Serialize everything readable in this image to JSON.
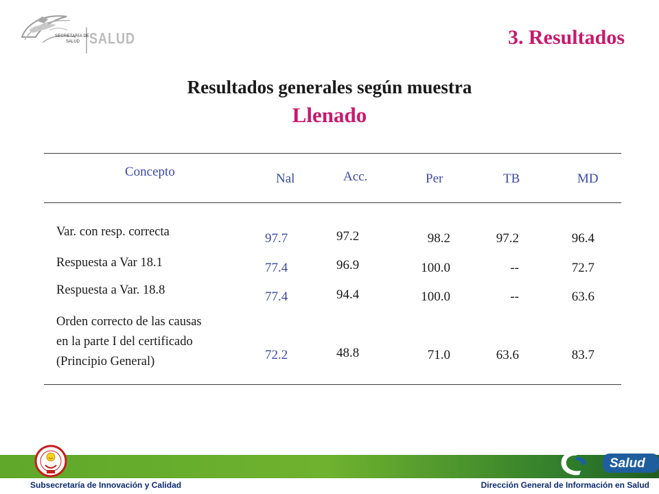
{
  "logo": {
    "line1": "SECRETARÍA DE",
    "line2": "SALUD",
    "brand": "SALUD"
  },
  "section_title": "3. Resultados",
  "main_title": "Resultados generales según muestra",
  "sub_title": "Llenado",
  "table": {
    "headers": {
      "concepto": "Concepto",
      "nal": "Nal",
      "acc": "Acc.",
      "per": "Per",
      "tb": "TB",
      "md": "MD"
    },
    "rows": [
      {
        "concepto": "Var. con resp. correcta",
        "nal": "97.7",
        "acc": "97.2",
        "per": "98.2",
        "tb": "97.2",
        "md": "96.4"
      },
      {
        "concepto": "Respuesta a Var 18.1",
        "nal": "77.4",
        "acc": "96.9",
        "per": "100.0",
        "tb": "--",
        "md": "72.7"
      },
      {
        "concepto": "Respuesta a Var. 18.8",
        "nal": "77.4",
        "acc": "94.4",
        "per": "100.0",
        "tb": "--",
        "md": "63.6"
      },
      {
        "concepto_lines": [
          "Orden correcto de las causas",
          "en la parte I del certificado",
          "(Principio General)"
        ],
        "nal": "72.2",
        "acc": "48.8",
        "per": "71.0",
        "tb": "63.6",
        "md": "83.7"
      }
    ]
  },
  "footer": {
    "left": "Subsecretaría de Innovación y Calidad",
    "right": "Dirección General de Información en Salud",
    "brand": "Salud"
  },
  "colors": {
    "accent": "#c8196e",
    "header_blue": "#3a48a8",
    "footer_green": "#6fb22f",
    "footer_text": "#0c2a70"
  }
}
